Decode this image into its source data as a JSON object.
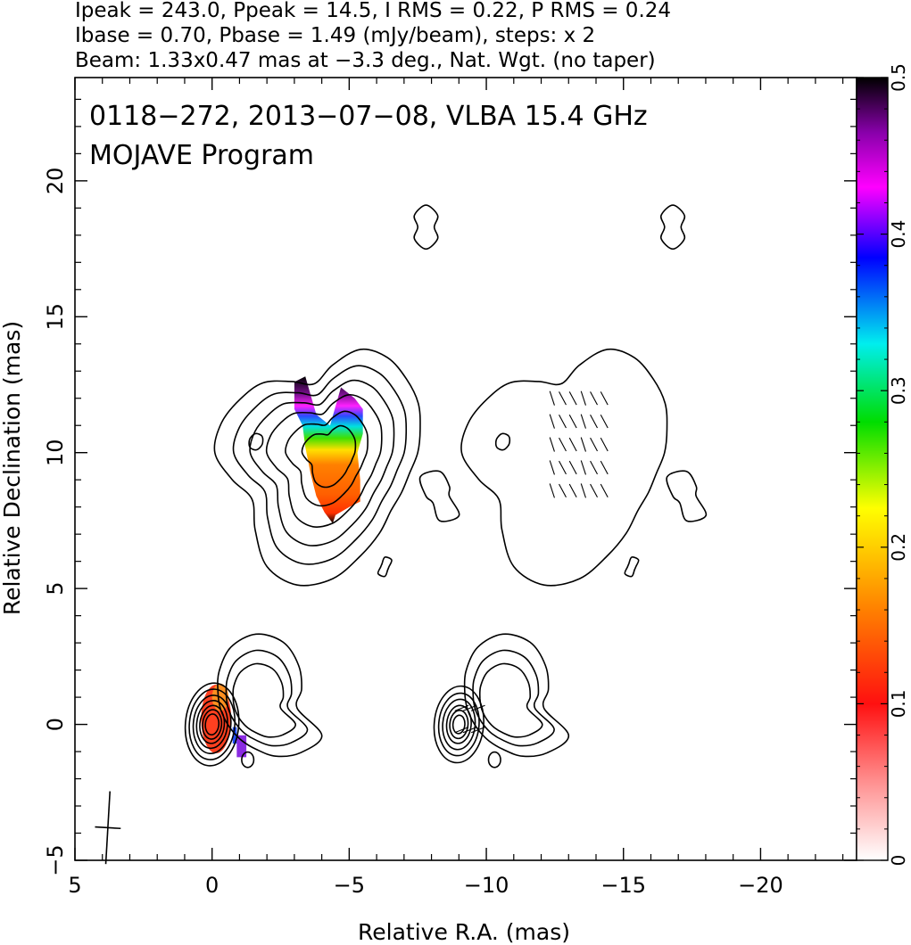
{
  "header": {
    "line1": "Ipeak = 243.0, Ppeak = 14.5, I RMS = 0.22, P RMS = 0.24",
    "line2": "Ibase = 0.70, Pbase = 1.49 (mJy/beam), steps: x 2",
    "line3": "Beam: 1.33x0.47 mas at −3.3 deg., Nat. Wgt. (no taper)"
  },
  "chart_data": {
    "type": "heatmap",
    "title": "0118−272, 2013−07−08, VLBA 15.4 GHz",
    "subtitle": "MOJAVE Program",
    "xlabel": "Relative R.A. (mas)",
    "ylabel": "Relative Declination (mas)",
    "xlim": [
      5.0,
      -23.5
    ],
    "ylim": [
      -5.0,
      23.8
    ],
    "x_ticks": [
      5,
      0,
      -5,
      -10,
      -15,
      -20
    ],
    "x_tick_labels": [
      "5",
      "0",
      "−5",
      "−10",
      "−15",
      "−20"
    ],
    "y_ticks": [
      -5,
      0,
      5,
      10,
      15,
      20
    ],
    "y_tick_labels": [
      "−5",
      "0",
      "5",
      "10",
      "15",
      "20"
    ],
    "colorbar": {
      "range": [
        0,
        0.5
      ],
      "ticks": [
        0,
        0.1,
        0.2,
        0.3,
        0.4,
        0.5
      ],
      "tick_labels": [
        "0",
        "0.1",
        "0.2",
        "0.3",
        "0.4",
        "0.5"
      ],
      "colors": [
        "#ffffff",
        "#ff2020",
        "#ff8000",
        "#ffff00",
        "#00dd00",
        "#00eeee",
        "#0000ff",
        "#ff00ff",
        "#8800aa",
        "#000000"
      ]
    },
    "panels": [
      {
        "name": "left",
        "core": {
          "x": 0.0,
          "y": 0.0
        },
        "core_fracpol": 0.1,
        "knot": {
          "x": -4.4,
          "y": 9.7
        },
        "knot_fracpol_range": [
          0.08,
          0.5
        ]
      },
      {
        "name": "right",
        "offset_x": -9.0,
        "evpa_vectors": true
      }
    ],
    "beam": {
      "major_mas": 1.33,
      "minor_mas": 0.47,
      "pa_deg": -3.3,
      "x": 3.8,
      "y": -3.8
    }
  }
}
